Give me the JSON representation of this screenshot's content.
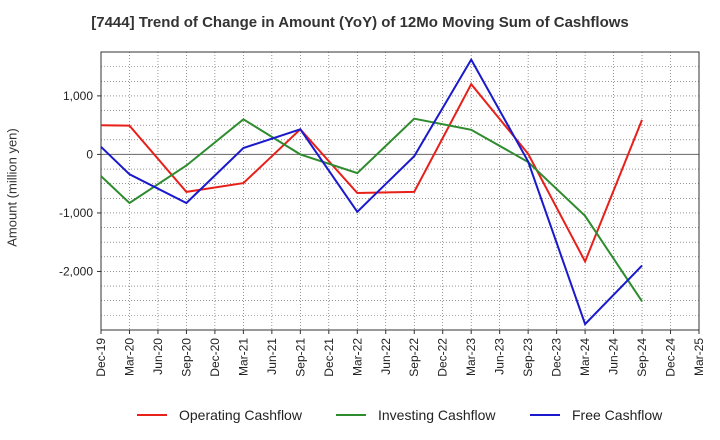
{
  "chart_data": {
    "type": "line",
    "title": "[7444]  Trend of Change in Amount (YoY) of 12Mo Moving Sum of Cashflows",
    "xlabel": "",
    "ylabel": "Amount (million yen)",
    "ylim": [
      -3000,
      1750
    ],
    "yticks": [
      1000,
      0,
      -1000,
      -2000
    ],
    "ytick_labels": [
      "1,000",
      "0",
      "-1,000",
      "-2,000"
    ],
    "categories": [
      "Dec-19",
      "Mar-20",
      "Jun-20",
      "Sep-20",
      "Dec-20",
      "Mar-21",
      "Jun-21",
      "Sep-21",
      "Dec-21",
      "Mar-22",
      "Jun-22",
      "Sep-22",
      "Dec-22",
      "Mar-23",
      "Jun-23",
      "Sep-23",
      "Dec-23",
      "Mar-24",
      "Jun-24",
      "Sep-24",
      "Dec-24",
      "Mar-25"
    ],
    "series": [
      {
        "name": "Operating Cashflow",
        "color": "#e8201a",
        "values": [
          500,
          490,
          null,
          -640,
          null,
          -490,
          null,
          430,
          null,
          -660,
          null,
          -640,
          null,
          1200,
          null,
          10,
          null,
          -1830,
          null,
          590,
          null,
          null
        ]
      },
      {
        "name": "Investing Cashflow",
        "color": "#2e8b2e",
        "values": [
          -370,
          -830,
          null,
          -190,
          null,
          600,
          null,
          0,
          null,
          -320,
          null,
          610,
          null,
          420,
          null,
          -130,
          null,
          -1050,
          null,
          -2510,
          null,
          null
        ]
      },
      {
        "name": "Free Cashflow",
        "color": "#1a1acc",
        "values": [
          130,
          -340,
          null,
          -830,
          null,
          110,
          null,
          430,
          null,
          -980,
          null,
          -30,
          null,
          1620,
          null,
          -120,
          null,
          -2900,
          null,
          -1900,
          null,
          null
        ]
      }
    ],
    "legend_position": "bottom",
    "grid": true
  }
}
